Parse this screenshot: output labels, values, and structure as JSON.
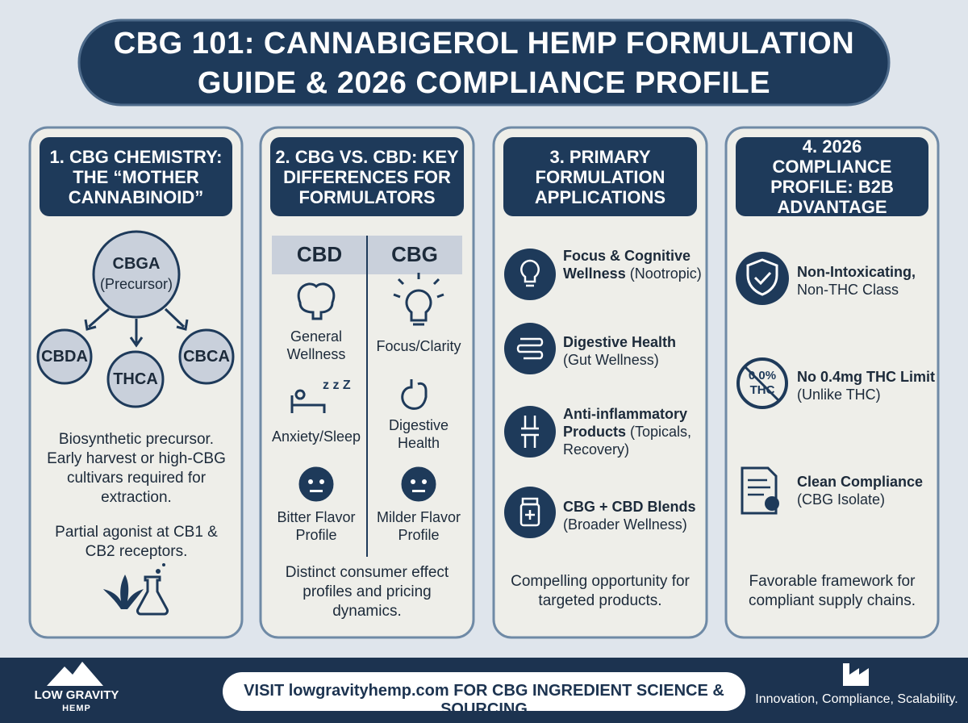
{
  "header": {
    "title_lines": [
      "CBG 101: CANNABIGEROL HEMP FORMULATION",
      "GUIDE & 2026 COMPLIANCE PROFILE"
    ]
  },
  "panels": [
    {
      "heading": "1. CBG CHEMISTRY: THE “MOTHER CANNABINOID”",
      "diagram": {
        "root": "CBGA",
        "root_note": "(Precursor)",
        "children": [
          "CBDA",
          "THCA",
          "CBCA"
        ]
      },
      "notes": [
        "Biosynthetic precursor. Early harvest or high-CBG cultivars required for extraction.",
        "Partial agonist at CB1 & CB2 receptors."
      ]
    },
    {
      "heading": "2. CBG VS. CBD: KEY DIFFERENCES FOR FORMULATORS",
      "columns": [
        "CBD",
        "CBG"
      ],
      "rows": [
        [
          "General Wellness",
          "Focus/Clarity"
        ],
        [
          "Anxiety/Sleep",
          "Digestive Health"
        ],
        [
          "Bitter Flavor Profile",
          "Milder Flavor Profile"
        ]
      ],
      "footer": "Distinct consumer effect profiles and pricing dynamics."
    },
    {
      "heading": "3. PRIMARY FORMULATION APPLICATIONS",
      "items": [
        {
          "title": "Focus & Cognitive Wellness",
          "detail": "(Nootropic)"
        },
        {
          "title": "Digestive Health",
          "detail": "(Gut Wellness)"
        },
        {
          "title": "Anti-inflammatory Products",
          "detail": "(Topicals, Recovery)"
        },
        {
          "title": "CBG + CBD Blends",
          "detail": "(Broader Wellness)"
        }
      ],
      "footer": "Compelling opportunity for targeted products."
    },
    {
      "heading": "4. 2026 COMPLIANCE PROFILE: B2B ADVANTAGE",
      "items": [
        {
          "title": "Non-Intoxicating,",
          "detail": "Non-THC Class"
        },
        {
          "title": "No 0.4mg THC Limit",
          "detail": "(Unlike THC)"
        },
        {
          "title": "Clean Compliance",
          "detail": "(CBG Isolate)"
        }
      ],
      "badge": [
        "0.0%",
        "THC"
      ],
      "footer": "Favorable framework for compliant supply chains."
    }
  ],
  "footer": {
    "logo": [
      "LOW GRAVITY",
      "HEMP"
    ],
    "cta": "VISIT lowgravityhemp.com FOR CBG INGREDIENT SCIENCE & SOURCING",
    "tagline": "Innovation, Compliance, Scalability."
  }
}
